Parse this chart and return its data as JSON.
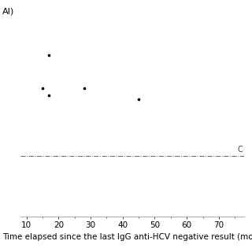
{
  "x_points": [
    17,
    15,
    17,
    28,
    45
  ],
  "y_points": [
    8.5,
    6.0,
    5.5,
    6.0,
    5.2
  ],
  "cutoff_y": 1.0,
  "cutoff_label": "C",
  "xlabel": "Time elapsed since the last IgG anti-HCV negative result (mont",
  "ylabel": "AI)",
  "xlim": [
    8,
    78
  ],
  "ylim": [
    -3.5,
    12
  ],
  "xticks": [
    10,
    20,
    30,
    40,
    50,
    60,
    70
  ],
  "point_color": "#000000",
  "point_size": 7,
  "cutoff_line_color": "#666666",
  "cutoff_line_style": "-.",
  "background_color": "#ffffff",
  "label_fontsize": 7.5,
  "ylabel_fontsize": 8
}
